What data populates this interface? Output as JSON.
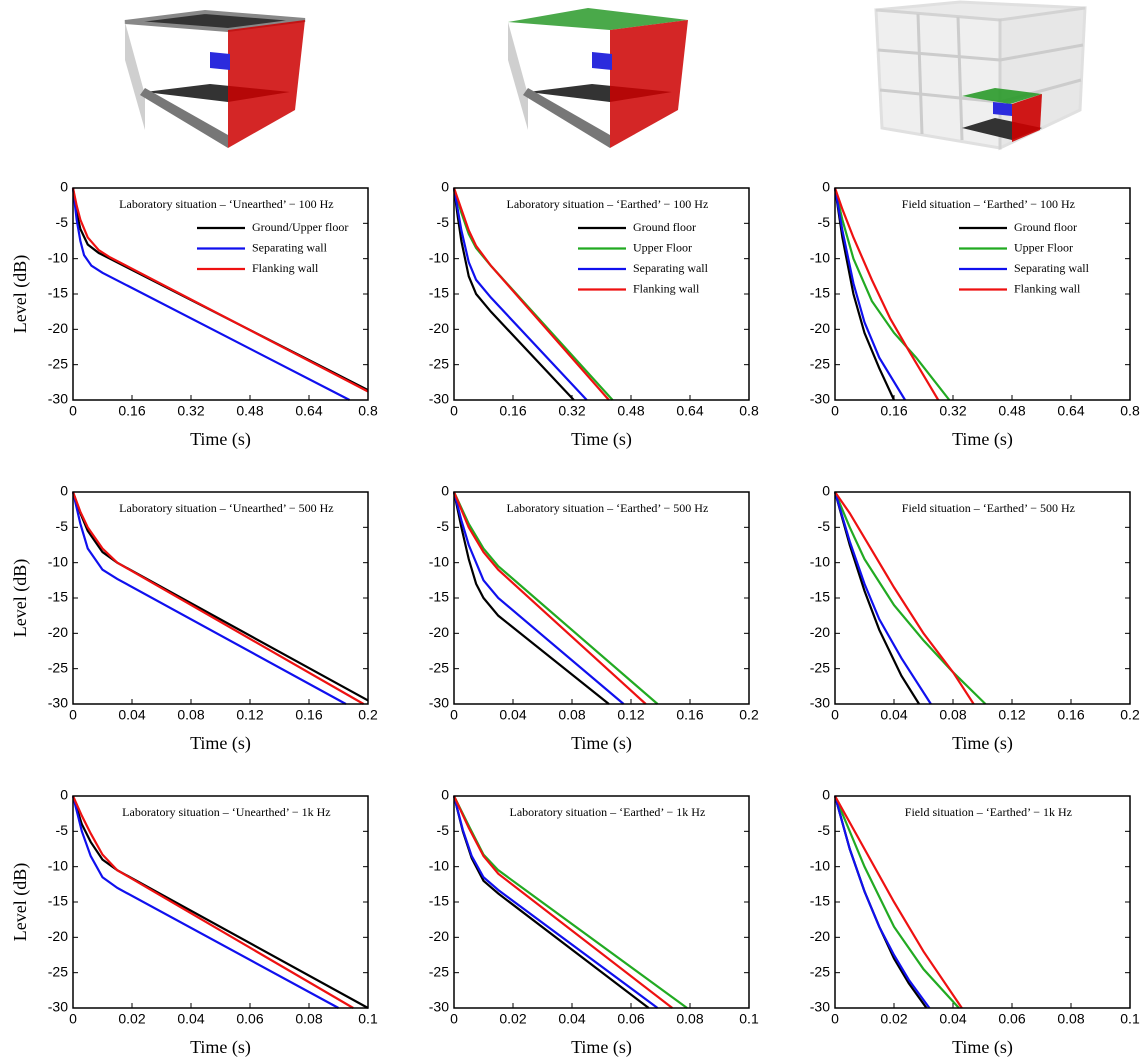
{
  "chart_data": [
    {
      "type": "line",
      "title": "Laboratory situation – ‘Unearthed’ − 100 Hz",
      "xlabel": "Time (s)",
      "ylabel": "Level (dB)",
      "legend": "upper right",
      "xlim": [
        0,
        0.8
      ],
      "xticks": [
        0,
        0.16,
        0.32,
        0.48,
        0.64,
        0.8
      ],
      "ylim": [
        -30,
        0
      ],
      "yticks": [
        0,
        -5,
        -10,
        -15,
        -20,
        -25,
        -30
      ],
      "series": [
        {
          "name": "Ground/Upper floor",
          "color": "#000000",
          "x": [
            0,
            0.01,
            0.02,
            0.04,
            0.07,
            0.1,
            0.8
          ],
          "values": [
            0,
            -3.5,
            -5.8,
            -8,
            -9.2,
            -10,
            -28.6
          ]
        },
        {
          "name": "Separating wall",
          "color": "#1010ee",
          "x": [
            0,
            0.01,
            0.02,
            0.03,
            0.05,
            0.08,
            0.75
          ],
          "values": [
            0,
            -4.5,
            -7.5,
            -9.5,
            -11,
            -12,
            -30
          ]
        },
        {
          "name": "Flanking wall",
          "color": "#ee1111",
          "x": [
            0,
            0.01,
            0.02,
            0.04,
            0.07,
            0.1,
            0.8
          ],
          "values": [
            0,
            -2.5,
            -4.5,
            -7,
            -8.8,
            -9.8,
            -28.8
          ]
        }
      ]
    },
    {
      "type": "line",
      "title": "Laboratory situation – ‘Earthed’ − 100 Hz",
      "xlabel": "Time (s)",
      "legend": "upper right",
      "xlim": [
        0,
        0.8
      ],
      "xticks": [
        0,
        0.16,
        0.32,
        0.48,
        0.64,
        0.8
      ],
      "ylim": [
        -30,
        0
      ],
      "yticks": [
        0,
        -5,
        -10,
        -15,
        -20,
        -25,
        -30
      ],
      "series": [
        {
          "name": "Ground floor",
          "color": "#000000",
          "x": [
            0,
            0.01,
            0.02,
            0.04,
            0.06,
            0.1,
            0.325
          ],
          "values": [
            0,
            -4,
            -7.5,
            -12.5,
            -15,
            -17.5,
            -30
          ]
        },
        {
          "name": "Upper Floor",
          "color": "#22aa22",
          "x": [
            0,
            0.02,
            0.04,
            0.06,
            0.1,
            0.43
          ],
          "values": [
            0,
            -3.5,
            -6.5,
            -8.5,
            -11,
            -30
          ]
        },
        {
          "name": "Separating wall",
          "color": "#1010ee",
          "x": [
            0,
            0.01,
            0.02,
            0.04,
            0.06,
            0.1,
            0.36
          ],
          "values": [
            0,
            -3,
            -6,
            -10.5,
            -13,
            -15.5,
            -30
          ]
        },
        {
          "name": "Flanking wall",
          "color": "#ee1111",
          "x": [
            0,
            0.02,
            0.04,
            0.06,
            0.1,
            0.42
          ],
          "values": [
            0,
            -3,
            -6,
            -8.2,
            -11,
            -30
          ]
        }
      ]
    },
    {
      "type": "line",
      "title": "Field situation – ‘Earthed’ − 100 Hz",
      "xlabel": "Time (s)",
      "legend": "upper right",
      "xlim": [
        0,
        0.8
      ],
      "xticks": [
        0,
        0.16,
        0.32,
        0.48,
        0.64,
        0.8
      ],
      "ylim": [
        -30,
        0
      ],
      "yticks": [
        0,
        -5,
        -10,
        -15,
        -20,
        -25,
        -30
      ],
      "series": [
        {
          "name": "Ground floor",
          "color": "#000000",
          "x": [
            0,
            0.02,
            0.05,
            0.08,
            0.12,
            0.16
          ],
          "values": [
            0,
            -7,
            -15,
            -20.5,
            -25.5,
            -30
          ]
        },
        {
          "name": "Upper Floor",
          "color": "#22aa22",
          "x": [
            0,
            0.02,
            0.05,
            0.1,
            0.16,
            0.22,
            0.31
          ],
          "values": [
            0,
            -4.5,
            -10,
            -16,
            -20.5,
            -24,
            -30
          ]
        },
        {
          "name": "Separating wall",
          "color": "#1010ee",
          "x": [
            0,
            0.02,
            0.05,
            0.08,
            0.12,
            0.19
          ],
          "values": [
            0,
            -6,
            -13.5,
            -19,
            -24,
            -30
          ]
        },
        {
          "name": "Flanking wall",
          "color": "#ee1111",
          "x": [
            0,
            0.02,
            0.05,
            0.1,
            0.15,
            0.2,
            0.28
          ],
          "values": [
            0,
            -3,
            -7,
            -13,
            -18.5,
            -23,
            -30
          ]
        }
      ]
    },
    {
      "type": "line",
      "title": "Laboratory situation – ‘Unearthed’ − 500 Hz",
      "xlabel": "Time (s)",
      "ylabel": "Level (dB)",
      "xlim": [
        0,
        0.2
      ],
      "xticks": [
        0,
        0.04,
        0.08,
        0.12,
        0.16,
        0.2
      ],
      "ylim": [
        -30,
        0
      ],
      "yticks": [
        0,
        -5,
        -10,
        -15,
        -20,
        -25,
        -30
      ],
      "series": [
        {
          "color": "#000000",
          "x": [
            0,
            0.005,
            0.01,
            0.02,
            0.03,
            0.2
          ],
          "values": [
            0,
            -3,
            -5.5,
            -8.5,
            -10,
            -29.5
          ]
        },
        {
          "color": "#1010ee",
          "x": [
            0,
            0.005,
            0.01,
            0.02,
            0.03,
            0.185
          ],
          "values": [
            0,
            -4.5,
            -8,
            -11,
            -12.3,
            -30
          ]
        },
        {
          "color": "#ee1111",
          "x": [
            0,
            0.005,
            0.01,
            0.02,
            0.03,
            0.197
          ],
          "values": [
            0,
            -2.8,
            -5,
            -8,
            -10,
            -30
          ]
        }
      ]
    },
    {
      "type": "line",
      "title": "Laboratory situation – ‘Earthed’ − 500 Hz",
      "xlabel": "Time (s)",
      "xlim": [
        0,
        0.2
      ],
      "xticks": [
        0,
        0.04,
        0.08,
        0.12,
        0.16,
        0.2
      ],
      "ylim": [
        -30,
        0
      ],
      "yticks": [
        0,
        -5,
        -10,
        -15,
        -20,
        -25,
        -30
      ],
      "series": [
        {
          "color": "#000000",
          "x": [
            0,
            0.005,
            0.01,
            0.015,
            0.02,
            0.03,
            0.105
          ],
          "values": [
            0,
            -5,
            -9.5,
            -13,
            -15,
            -17.5,
            -30
          ]
        },
        {
          "color": "#22aa22",
          "x": [
            0,
            0.01,
            0.02,
            0.03,
            0.138
          ],
          "values": [
            0,
            -4.5,
            -8,
            -10.5,
            -30
          ]
        },
        {
          "color": "#1010ee",
          "x": [
            0,
            0.005,
            0.01,
            0.02,
            0.03,
            0.115
          ],
          "values": [
            0,
            -4,
            -7.5,
            -12.5,
            -15,
            -30
          ]
        },
        {
          "color": "#ee1111",
          "x": [
            0,
            0.01,
            0.02,
            0.03,
            0.13
          ],
          "values": [
            0,
            -5,
            -8.5,
            -11,
            -30
          ]
        }
      ]
    },
    {
      "type": "line",
      "title": "Field situation – ‘Earthed’ − 500 Hz",
      "xlabel": "Time (s)",
      "xlim": [
        0,
        0.2
      ],
      "xticks": [
        0,
        0.04,
        0.08,
        0.12,
        0.16,
        0.2
      ],
      "ylim": [
        -30,
        0
      ],
      "yticks": [
        0,
        -5,
        -10,
        -15,
        -20,
        -25,
        -30
      ],
      "series": [
        {
          "color": "#000000",
          "x": [
            0,
            0.01,
            0.02,
            0.03,
            0.045,
            0.057
          ],
          "values": [
            0,
            -7.5,
            -14,
            -19.5,
            -26,
            -30
          ]
        },
        {
          "color": "#22aa22",
          "x": [
            0,
            0.01,
            0.02,
            0.04,
            0.06,
            0.08,
            0.102
          ],
          "values": [
            0,
            -5,
            -9.5,
            -16,
            -21,
            -25.5,
            -30
          ]
        },
        {
          "color": "#1010ee",
          "x": [
            0,
            0.01,
            0.02,
            0.03,
            0.045,
            0.065
          ],
          "values": [
            0,
            -7,
            -13,
            -18,
            -23.5,
            -30
          ]
        },
        {
          "color": "#ee1111",
          "x": [
            0,
            0.01,
            0.02,
            0.04,
            0.06,
            0.08,
            0.094
          ],
          "values": [
            0,
            -3,
            -6.5,
            -13.5,
            -20,
            -25.5,
            -30
          ]
        }
      ]
    },
    {
      "type": "line",
      "title": "Laboratory situation – ‘Unearthed’ − 1k Hz",
      "xlabel": "Time (s)",
      "ylabel": "Level (dB)",
      "xlim": [
        0,
        0.1
      ],
      "xticks": [
        0,
        0.02,
        0.04,
        0.06,
        0.08,
        0.1
      ],
      "ylim": [
        -30,
        0
      ],
      "yticks": [
        0,
        -5,
        -10,
        -15,
        -20,
        -25,
        -30
      ],
      "series": [
        {
          "color": "#000000",
          "x": [
            0,
            0.003,
            0.006,
            0.01,
            0.015,
            0.1
          ],
          "values": [
            0,
            -4,
            -6.5,
            -9,
            -10.5,
            -30
          ]
        },
        {
          "color": "#1010ee",
          "x": [
            0,
            0.003,
            0.006,
            0.01,
            0.015,
            0.09
          ],
          "values": [
            0,
            -5,
            -8.5,
            -11.5,
            -13,
            -30
          ]
        },
        {
          "color": "#ee1111",
          "x": [
            0,
            0.003,
            0.006,
            0.01,
            0.015,
            0.095
          ],
          "values": [
            0,
            -2.8,
            -5.3,
            -8.3,
            -10.5,
            -30
          ]
        }
      ]
    },
    {
      "type": "line",
      "title": "Laboratory situation – ‘Earthed’ − 1k Hz",
      "xlabel": "Time (s)",
      "xlim": [
        0,
        0.1
      ],
      "xticks": [
        0,
        0.02,
        0.04,
        0.06,
        0.08,
        0.1
      ],
      "ylim": [
        -30,
        0
      ],
      "yticks": [
        0,
        -5,
        -10,
        -15,
        -20,
        -25,
        -30
      ],
      "series": [
        {
          "color": "#000000",
          "x": [
            0,
            0.003,
            0.006,
            0.01,
            0.015,
            0.066
          ],
          "values": [
            0,
            -5,
            -8.8,
            -12,
            -13.8,
            -30
          ]
        },
        {
          "color": "#22aa22",
          "x": [
            0,
            0.005,
            0.01,
            0.015,
            0.079
          ],
          "values": [
            0,
            -4.2,
            -8.3,
            -10.5,
            -30
          ]
        },
        {
          "color": "#1010ee",
          "x": [
            0,
            0.003,
            0.006,
            0.01,
            0.015,
            0.069
          ],
          "values": [
            0,
            -4.8,
            -8.5,
            -11.5,
            -13.3,
            -30
          ]
        },
        {
          "color": "#ee1111",
          "x": [
            0,
            0.005,
            0.01,
            0.015,
            0.074
          ],
          "values": [
            0,
            -4.5,
            -8.5,
            -11,
            -30
          ]
        }
      ]
    },
    {
      "type": "line",
      "title": "Field situation – ‘Earthed’ − 1k Hz",
      "xlabel": "Time (s)",
      "xlim": [
        0,
        0.1
      ],
      "xticks": [
        0,
        0.02,
        0.04,
        0.06,
        0.08,
        0.1
      ],
      "ylim": [
        -30,
        0
      ],
      "yticks": [
        0,
        -5,
        -10,
        -15,
        -20,
        -25,
        -30
      ],
      "series": [
        {
          "color": "#000000",
          "x": [
            0,
            0.005,
            0.01,
            0.015,
            0.02,
            0.025,
            0.031
          ],
          "values": [
            0,
            -7.5,
            -13.5,
            -18.5,
            -23,
            -26.5,
            -30
          ]
        },
        {
          "color": "#22aa22",
          "x": [
            0,
            0.01,
            0.02,
            0.03,
            0.042
          ],
          "values": [
            0,
            -10,
            -18.5,
            -24.5,
            -30
          ]
        },
        {
          "color": "#1010ee",
          "x": [
            0,
            0.005,
            0.01,
            0.015,
            0.02,
            0.025,
            0.032
          ],
          "values": [
            0,
            -7.5,
            -13.5,
            -18.5,
            -22.5,
            -26,
            -30
          ]
        },
        {
          "color": "#ee1111",
          "x": [
            0,
            0.01,
            0.02,
            0.03,
            0.043
          ],
          "values": [
            0,
            -7.5,
            -15,
            -22,
            -30
          ]
        }
      ]
    }
  ]
}
